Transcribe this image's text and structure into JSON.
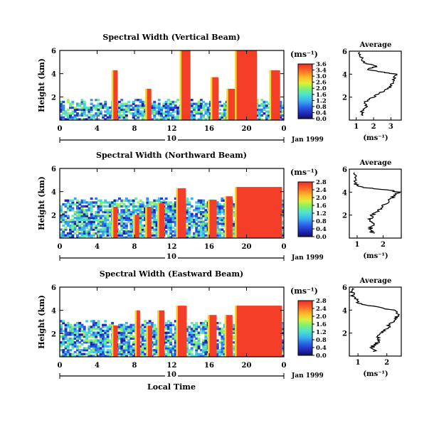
{
  "chart_data": [
    {
      "type": "heatmap",
      "title": "Spectral Width (Vertical Beam)",
      "ylabel": "Height (km)",
      "ylim": [
        0,
        6
      ],
      "yticks": [
        "2",
        "4",
        "6"
      ],
      "xlim": [
        0,
        24
      ],
      "xticks": [
        "0",
        "4",
        "8",
        "12",
        "16",
        "20",
        "0"
      ],
      "date_row": {
        "day": "10",
        "month_year": "Jan 1999"
      },
      "colorbar": {
        "unit": "(ms⁻¹)",
        "range": [
          0,
          3.6
        ],
        "ticks": [
          "3.6",
          "3.4",
          "3.0",
          "2.6",
          "2.0",
          "1.6",
          "1.2",
          "0.8",
          "0.4",
          "0.0"
        ]
      },
      "strong_bands": [
        [
          5.7,
          6.2,
          4.3
        ],
        [
          9.3,
          9.8,
          2.7
        ],
        [
          13.0,
          14.0,
          6.0
        ],
        [
          16.3,
          17.0,
          3.7
        ],
        [
          18.0,
          18.8,
          2.7
        ],
        [
          18.9,
          21.1,
          6.0
        ],
        [
          22.6,
          23.6,
          4.3
        ]
      ],
      "data_top_km": 1.3,
      "average": {
        "title": "Average",
        "xlabel": "(ms⁻¹)",
        "xticks": [
          "1",
          "2",
          "3"
        ],
        "yticks": [
          "2",
          "4",
          "6"
        ],
        "xlim": [
          0.6,
          3.6
        ],
        "ylim": [
          0,
          6
        ],
        "profile": [
          [
            1.4,
            0.4
          ],
          [
            1.3,
            0.8
          ],
          [
            1.6,
            1.2
          ],
          [
            1.5,
            1.6
          ],
          [
            2.0,
            2.0
          ],
          [
            2.4,
            2.4
          ],
          [
            2.9,
            2.8
          ],
          [
            3.1,
            3.2
          ],
          [
            3.2,
            3.6
          ],
          [
            3.3,
            4.0
          ],
          [
            2.4,
            4.2
          ],
          [
            1.6,
            4.4
          ],
          [
            2.2,
            4.7
          ],
          [
            1.4,
            5.0
          ],
          [
            1.3,
            5.5
          ],
          [
            1.2,
            5.9
          ]
        ]
      }
    },
    {
      "type": "heatmap",
      "title": "Spectral Width (Northward Beam)",
      "ylabel": "Height (km)",
      "ylim": [
        0,
        6
      ],
      "yticks": [
        "2",
        "4",
        "6"
      ],
      "xlim": [
        0,
        24
      ],
      "xticks": [
        "0",
        "4",
        "8",
        "12",
        "16",
        "20",
        "0"
      ],
      "date_row": {
        "day": "10",
        "month_year": "Jan 1999"
      },
      "colorbar": {
        "unit": "(ms⁻¹)",
        "range": [
          0,
          2.8
        ],
        "ticks": [
          "2.8",
          "2.4",
          "2.0",
          "1.6",
          "1.2",
          "0.8",
          "0.4",
          "0.0"
        ]
      },
      "strong_bands": [
        [
          5.7,
          6.2,
          2.7
        ],
        [
          8.0,
          8.5,
          2.0
        ],
        [
          9.3,
          9.8,
          2.7
        ],
        [
          10.6,
          11.2,
          3.0
        ],
        [
          12.6,
          13.5,
          4.3
        ],
        [
          16.0,
          16.8,
          3.3
        ],
        [
          17.8,
          18.5,
          3.6
        ],
        [
          18.9,
          23.8,
          4.4
        ]
      ],
      "data_top_km": 3.0,
      "average": {
        "title": "Average",
        "xlabel": "(ms⁻¹)",
        "xticks": [
          "1",
          "2"
        ],
        "yticks": [
          "2",
          "4",
          "6"
        ],
        "xlim": [
          0.7,
          2.7
        ],
        "ylim": [
          0,
          6
        ],
        "profile": [
          [
            1.6,
            0.4
          ],
          [
            1.5,
            0.8
          ],
          [
            1.6,
            1.2
          ],
          [
            1.5,
            1.6
          ],
          [
            1.6,
            2.0
          ],
          [
            1.8,
            2.4
          ],
          [
            2.0,
            2.8
          ],
          [
            2.2,
            3.2
          ],
          [
            2.4,
            3.6
          ],
          [
            2.6,
            4.0
          ],
          [
            2.2,
            4.2
          ],
          [
            1.2,
            4.4
          ],
          [
            0.9,
            4.7
          ],
          [
            0.9,
            5.2
          ],
          [
            0.9,
            5.7
          ]
        ]
      }
    },
    {
      "type": "heatmap",
      "title": "Spectral Width (Eastward Beam)",
      "ylabel": "Height (km)",
      "ylim": [
        0,
        6
      ],
      "yticks": [
        "2",
        "4",
        "6"
      ],
      "xlim": [
        0,
        24
      ],
      "xticks": [
        "0",
        "4",
        "8",
        "12",
        "16",
        "20",
        "0"
      ],
      "date_row": {
        "day": "10",
        "month_year": "Jan 1999"
      },
      "colorbar": {
        "unit": "(ms⁻¹)",
        "range": [
          0,
          2.8
        ],
        "ticks": [
          "2.8",
          "2.4",
          "2.0",
          "1.6",
          "1.2",
          "0.8",
          "0.4",
          "0.0"
        ]
      },
      "strong_bands": [
        [
          5.7,
          6.2,
          2.7
        ],
        [
          8.2,
          8.6,
          4.0
        ],
        [
          9.4,
          9.9,
          2.7
        ],
        [
          10.6,
          11.2,
          4.0
        ],
        [
          12.6,
          13.6,
          4.4
        ],
        [
          16.0,
          16.8,
          3.6
        ],
        [
          17.8,
          18.5,
          3.6
        ],
        [
          18.9,
          23.8,
          4.4
        ]
      ],
      "data_top_km": 2.6,
      "average": {
        "title": "Average",
        "xlabel": "(ms⁻¹)",
        "xticks": [
          "1",
          "2"
        ],
        "yticks": [
          "2",
          "4",
          "6"
        ],
        "xlim": [
          0.7,
          2.5
        ],
        "ylim": [
          0,
          6
        ],
        "profile": [
          [
            1.6,
            0.4
          ],
          [
            1.5,
            0.8
          ],
          [
            1.7,
            1.2
          ],
          [
            1.7,
            1.6
          ],
          [
            1.8,
            2.0
          ],
          [
            2.0,
            2.4
          ],
          [
            2.1,
            2.8
          ],
          [
            2.3,
            3.2
          ],
          [
            2.4,
            3.6
          ],
          [
            2.2,
            4.0
          ],
          [
            1.6,
            4.3
          ],
          [
            1.0,
            4.6
          ],
          [
            0.9,
            5.0
          ],
          [
            0.8,
            5.5
          ],
          [
            0.8,
            5.9
          ]
        ]
      }
    }
  ],
  "footer": {
    "xlabel": "Local Time"
  }
}
